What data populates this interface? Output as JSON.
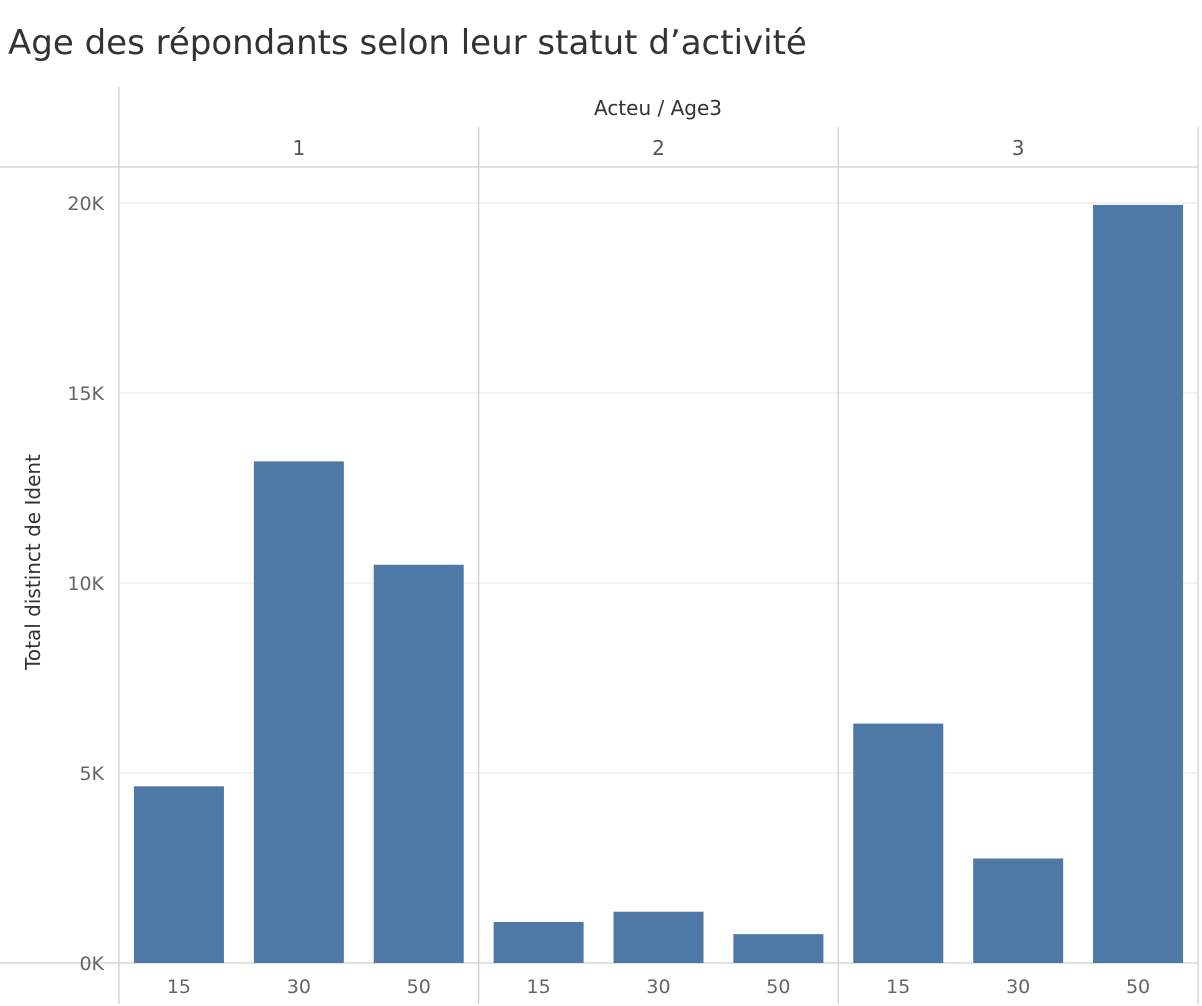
{
  "title": "Age des répondants selon leur statut d’activité",
  "chart_data": {
    "type": "bar",
    "title": "Age des répondants selon leur statut d’activité",
    "column_header": "Acteu / Age3",
    "ylabel": "Total distinct de Ident",
    "ylim": [
      0,
      20000
    ],
    "yticks": [
      0,
      5000,
      10000,
      15000,
      20000
    ],
    "ytick_labels": [
      "0K",
      "5K",
      "10K",
      "15K",
      "20K"
    ],
    "grid": true,
    "bar_color": "#4e79a7",
    "groups": [
      {
        "label": "1",
        "categories": [
          "15",
          "30",
          "50"
        ],
        "values": [
          4650,
          13200,
          10480
        ]
      },
      {
        "label": "2",
        "categories": [
          "15",
          "30",
          "50"
        ],
        "values": [
          1080,
          1350,
          760
        ]
      },
      {
        "label": "3",
        "categories": [
          "15",
          "30",
          "50"
        ],
        "values": [
          6300,
          2750,
          19950
        ]
      }
    ]
  }
}
